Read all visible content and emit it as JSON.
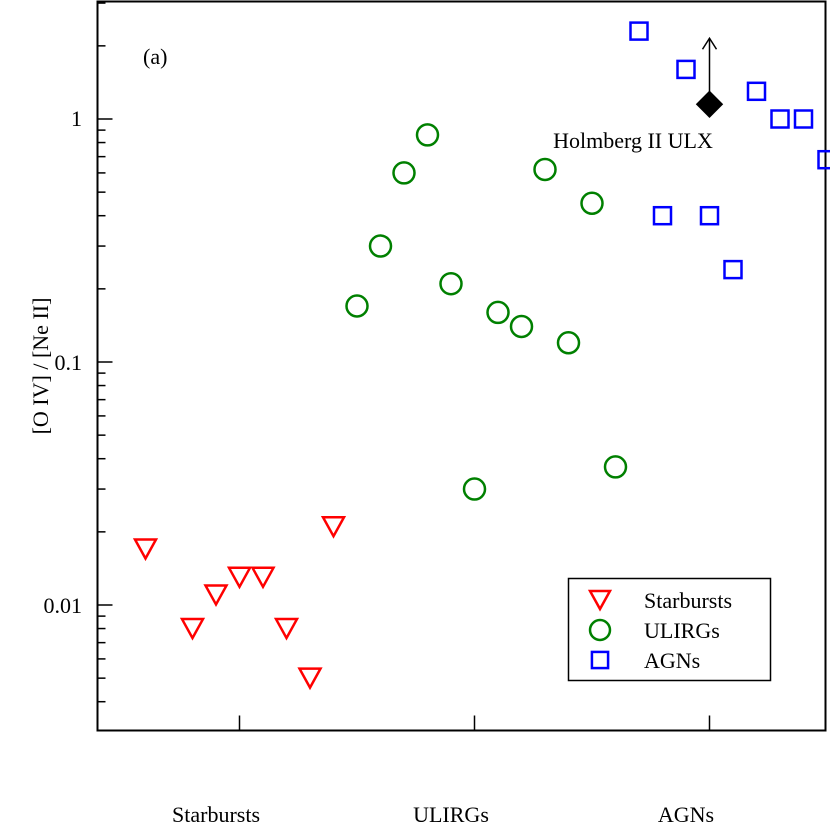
{
  "chart_data": {
    "type": "scatter",
    "panel_label": "(a)",
    "ylabel": "[O IV] / [Ne II]",
    "yscale": "log",
    "ylim": [
      0.0035,
      3.2
    ],
    "xlim": [
      0,
      3
    ],
    "y_ticks": [
      {
        "value": 1,
        "label": "1"
      },
      {
        "value": 0.1,
        "label": "0.1"
      },
      {
        "value": 0.01,
        "label": "0.01"
      }
    ],
    "category_labels": [
      {
        "x": 0.5,
        "label": "Starbursts"
      },
      {
        "x": 1.5,
        "label": "ULIRGs"
      },
      {
        "x": 2.5,
        "label": "AGNs"
      }
    ],
    "series": [
      {
        "name": "Starbursts",
        "marker": "triangle-down",
        "color": "#ff0000",
        "points": [
          {
            "x": 0.1,
            "y": 0.017
          },
          {
            "x": 0.3,
            "y": 0.008
          },
          {
            "x": 0.4,
            "y": 0.011
          },
          {
            "x": 0.5,
            "y": 0.013
          },
          {
            "x": 0.6,
            "y": 0.013
          },
          {
            "x": 0.7,
            "y": 0.008
          },
          {
            "x": 0.8,
            "y": 0.005
          },
          {
            "x": 0.9,
            "y": 0.021
          }
        ]
      },
      {
        "name": "ULIRGs",
        "marker": "circle",
        "color": "#008000",
        "points": [
          {
            "x": 1.0,
            "y": 0.17
          },
          {
            "x": 1.1,
            "y": 0.3
          },
          {
            "x": 1.2,
            "y": 0.6
          },
          {
            "x": 1.3,
            "y": 0.86
          },
          {
            "x": 1.4,
            "y": 0.21
          },
          {
            "x": 1.5,
            "y": 0.03
          },
          {
            "x": 1.6,
            "y": 0.16
          },
          {
            "x": 1.7,
            "y": 0.14
          },
          {
            "x": 1.8,
            "y": 0.62
          },
          {
            "x": 1.9,
            "y": 0.12
          },
          {
            "x": 2.0,
            "y": 0.45
          },
          {
            "x": 2.1,
            "y": 0.037
          }
        ]
      },
      {
        "name": "AGNs",
        "marker": "square",
        "color": "#0000ff",
        "points": [
          {
            "x": 2.2,
            "y": 2.3
          },
          {
            "x": 2.3,
            "y": 0.4
          },
          {
            "x": 2.4,
            "y": 1.6
          },
          {
            "x": 2.5,
            "y": 0.4
          },
          {
            "x": 2.6,
            "y": 0.24
          },
          {
            "x": 2.7,
            "y": 1.3
          },
          {
            "x": 2.8,
            "y": 1.0
          },
          {
            "x": 2.9,
            "y": 1.0
          },
          {
            "x": 3.0,
            "y": 0.68
          }
        ]
      }
    ],
    "annotation": {
      "label": "Holmberg II ULX",
      "marker": "diamond",
      "color": "#000000",
      "x": 2.5,
      "y": 1.15,
      "lower_limit": true,
      "arrow_to_y": 2.15
    },
    "legend": {
      "placement": "bottom-right",
      "entries": [
        {
          "label": "Starbursts",
          "marker": "triangle-down",
          "color": "#ff0000"
        },
        {
          "label": "ULIRGs",
          "marker": "circle",
          "color": "#008000"
        },
        {
          "label": "AGNs",
          "marker": "square",
          "color": "#0000ff"
        }
      ]
    }
  }
}
